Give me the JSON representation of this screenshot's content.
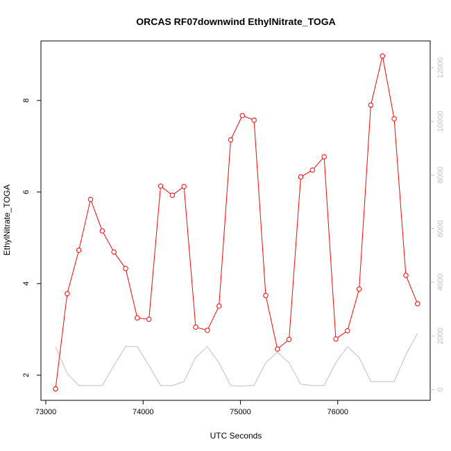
{
  "chart_data": {
    "type": "line",
    "title": "ORCAS RF07downwind EthylNitrate_TOGA",
    "xlabel": "UTC Seconds",
    "ylabel": "EthylNitrate_TOGA",
    "xlim": [
      72950,
      76950
    ],
    "ylim": [
      1.45,
      9.3
    ],
    "y2lim": [
      -400,
      13000
    ],
    "x_ticks": [
      73000,
      74000,
      75000,
      76000
    ],
    "y_ticks": [
      2,
      4,
      6,
      8
    ],
    "y2_ticks": [
      0,
      2000,
      4000,
      6000,
      8000,
      10000,
      12000
    ],
    "colors": {
      "primary": "#ff0000",
      "secondary": "#bebebe",
      "axis": "#000000"
    },
    "series": [
      {
        "role": "primary",
        "x": [
          73100,
          73220,
          73340,
          73460,
          73580,
          73700,
          73820,
          73940,
          74060,
          74180,
          74300,
          74420,
          74540,
          74660,
          74780,
          74900,
          75020,
          75140,
          75260,
          75380,
          75500,
          75620,
          75740,
          75860,
          75980,
          76100,
          76220,
          76340,
          76460,
          76580,
          76700,
          76820
        ],
        "values": [
          1.7,
          3.78,
          4.73,
          5.84,
          5.15,
          4.69,
          4.33,
          3.25,
          3.22,
          6.13,
          5.93,
          6.12,
          3.05,
          2.98,
          3.51,
          7.14,
          7.67,
          7.57,
          3.74,
          2.57,
          2.78,
          6.33,
          6.48,
          6.77,
          2.79,
          2.97,
          3.88,
          7.9,
          8.97,
          7.6,
          4.18,
          3.56
        ]
      },
      {
        "role": "secondary",
        "x": [
          73100,
          73220,
          73340,
          73460,
          73580,
          73700,
          73820,
          73940,
          74060,
          74180,
          74300,
          74420,
          74540,
          74660,
          74780,
          74900,
          75020,
          75140,
          75260,
          75380,
          75500,
          75620,
          75740,
          75860,
          75980,
          76100,
          76220,
          76340,
          76460,
          76580,
          76700,
          76820
        ],
        "values": [
          1600,
          600,
          150,
          150,
          150,
          900,
          1600,
          1600,
          900,
          150,
          150,
          300,
          1200,
          1600,
          1000,
          150,
          130,
          160,
          1000,
          1400,
          1000,
          200,
          150,
          150,
          1000,
          1600,
          1200,
          300,
          300,
          300,
          1300,
          2100
        ]
      }
    ]
  }
}
